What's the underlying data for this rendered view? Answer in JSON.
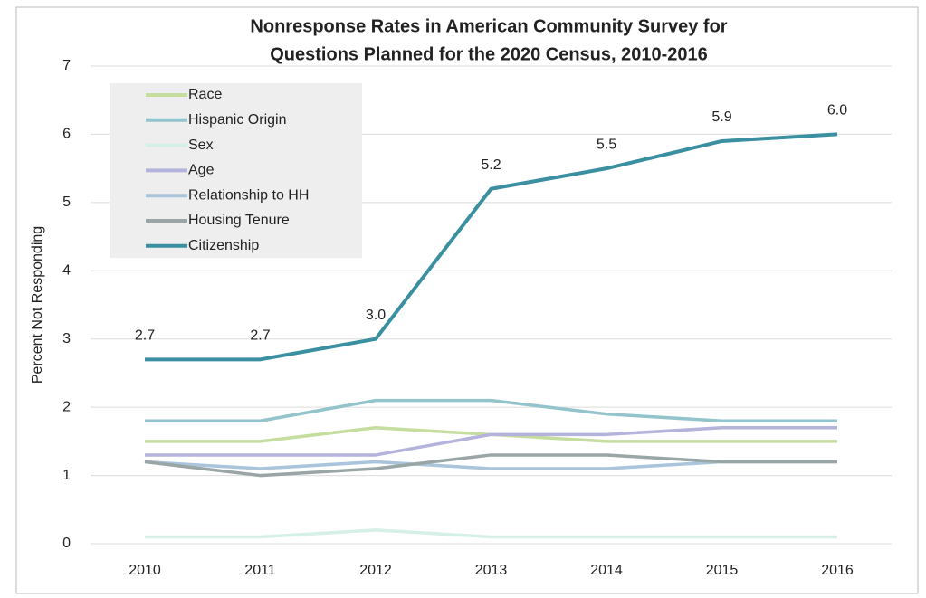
{
  "chart_data": {
    "type": "line",
    "title": [
      "Nonresponse Rates in American Community Survey for",
      "Questions Planned for the  2020 Census, 2010-2016"
    ],
    "y_label": "Percent Not Responding",
    "categories": [
      "2010",
      "2011",
      "2012",
      "2013",
      "2014",
      "2015",
      "2016"
    ],
    "ylim": [
      0,
      7
    ],
    "yticks": [
      0,
      1,
      2,
      3,
      4,
      5,
      6,
      7
    ],
    "grid": true,
    "legend": "upper left",
    "series": [
      {
        "name": "Race",
        "color": "#c5dea0",
        "values": [
          1.5,
          1.5,
          1.7,
          1.6,
          1.5,
          1.5,
          1.5
        ]
      },
      {
        "name": "Hispanic Origin",
        "color": "#93c4cc",
        "values": [
          1.8,
          1.8,
          2.1,
          2.1,
          1.9,
          1.8,
          1.8
        ]
      },
      {
        "name": "Sex",
        "color": "#d6efe8",
        "values": [
          0.1,
          0.1,
          0.2,
          0.1,
          0.1,
          0.1,
          0.1
        ]
      },
      {
        "name": "Age",
        "color": "#b3b3db",
        "values": [
          1.3,
          1.3,
          1.3,
          1.6,
          1.6,
          1.7,
          1.7
        ]
      },
      {
        "name": "Relationship to HH",
        "color": "#aac4dc",
        "values": [
          1.2,
          1.1,
          1.2,
          1.1,
          1.1,
          1.2,
          1.2
        ]
      },
      {
        "name": "Housing Tenure",
        "color": "#9aa5a6",
        "values": [
          1.2,
          1.0,
          1.1,
          1.3,
          1.3,
          1.2,
          1.2
        ]
      },
      {
        "name": "Citizenship",
        "color": "#3a8fa0",
        "values": [
          2.7,
          2.7,
          3.0,
          5.2,
          5.5,
          5.9,
          6.0
        ],
        "value_labels": [
          "2.7",
          "2.7",
          "3.0",
          "5.2",
          "5.5",
          "5.9",
          "6.0"
        ]
      }
    ]
  }
}
